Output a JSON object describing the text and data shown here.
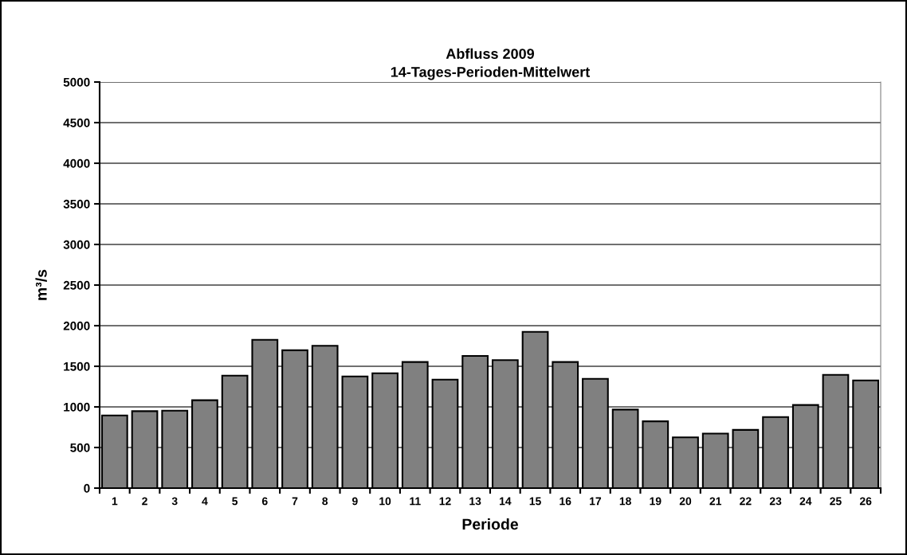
{
  "chart_data": {
    "type": "bar",
    "title": "Abfluss 2009",
    "subtitle": "14-Tages-Perioden-Mittelwert",
    "xlabel": "Periode",
    "ylabel": "m³/s",
    "categories": [
      "1",
      "2",
      "3",
      "4",
      "5",
      "6",
      "7",
      "8",
      "9",
      "10",
      "11",
      "12",
      "13",
      "14",
      "15",
      "16",
      "17",
      "18",
      "19",
      "20",
      "21",
      "22",
      "23",
      "24",
      "25",
      "26"
    ],
    "values": [
      895,
      947,
      954,
      1082,
      1385,
      1826,
      1697,
      1753,
      1375,
      1414,
      1553,
      1336,
      1628,
      1576,
      1924,
      1553,
      1345,
      967,
      822,
      625,
      671,
      717,
      875,
      1023,
      1395,
      1326
    ],
    "color": "#808080",
    "ylim": [
      0,
      5000
    ],
    "yticks": [
      0,
      500,
      1000,
      1500,
      2000,
      2500,
      3000,
      3500,
      4000,
      4500,
      5000
    ],
    "grid": "y",
    "legend": false
  }
}
